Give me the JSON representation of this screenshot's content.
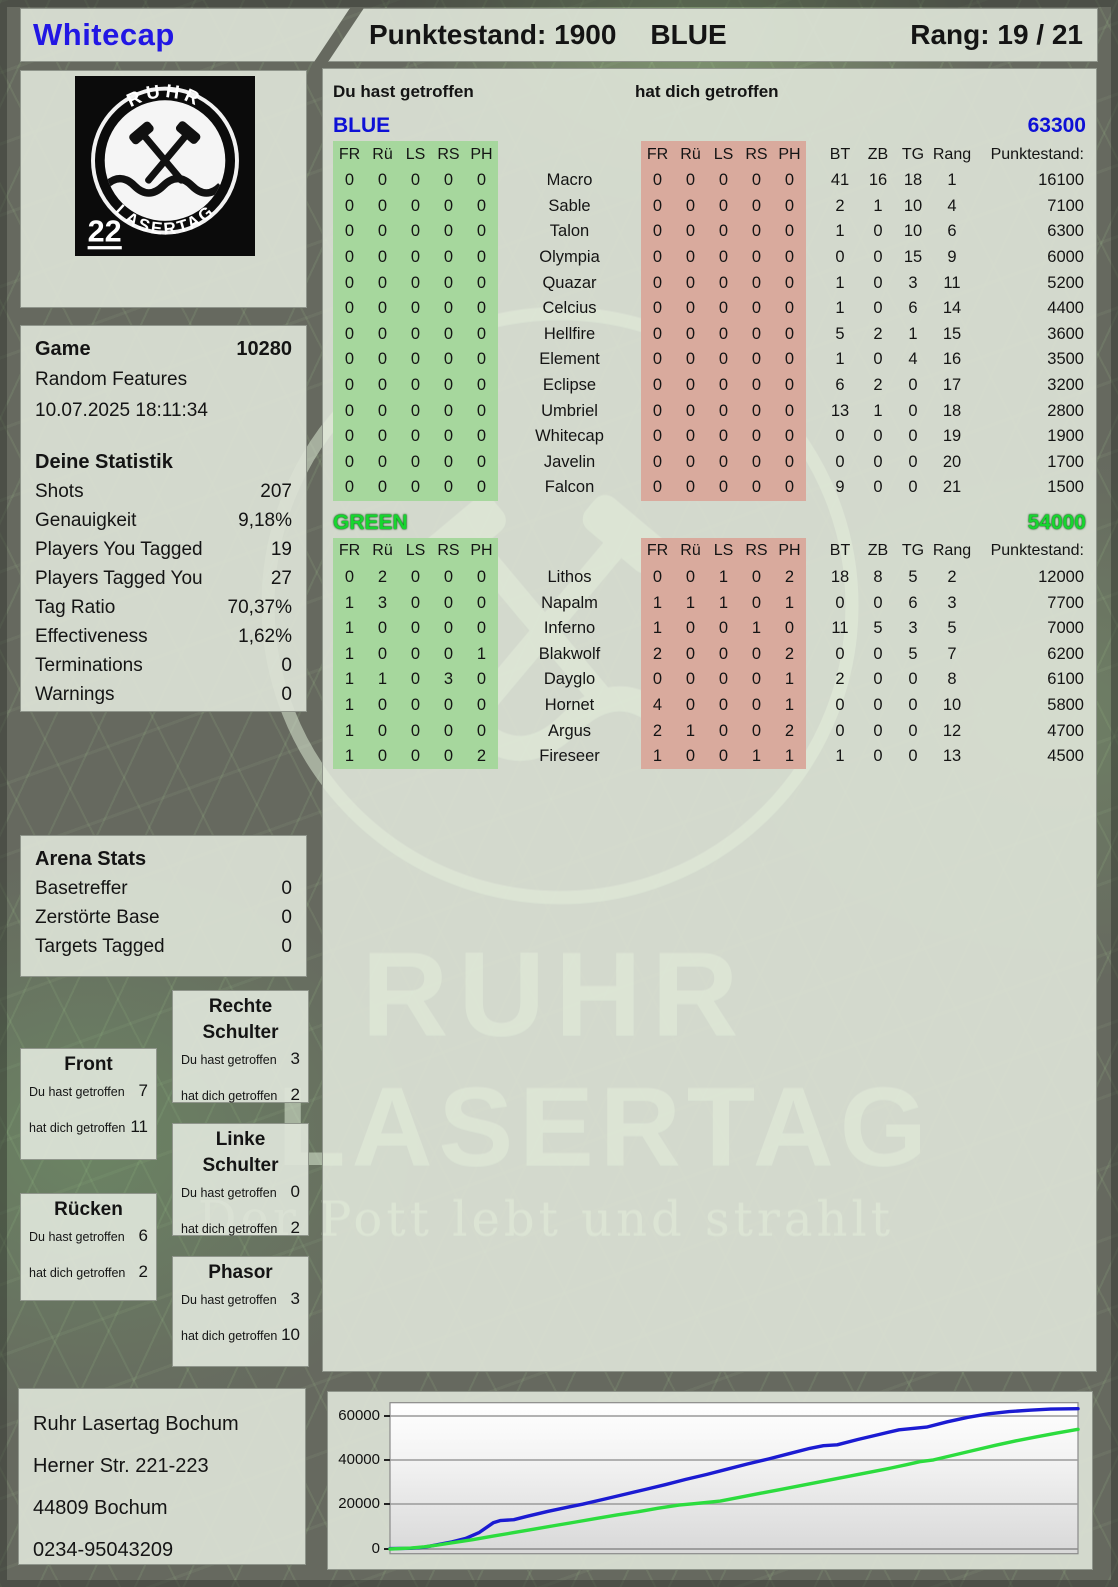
{
  "header": {
    "player": "Whitecap",
    "punktestand": "Punktestand: 1900",
    "team": "BLUE",
    "rang": "Rang: 19 / 21"
  },
  "logo": {
    "arc_top": "RUHR",
    "arc_bottom": "LASERTAG",
    "number": "22"
  },
  "game": {
    "label": "Game",
    "id": "10280",
    "mode": "Random Features",
    "datetime": "10.07.2025 18:11:34"
  },
  "your_stats": {
    "title": "Deine Statistik",
    "rows": [
      [
        "Shots",
        "207"
      ],
      [
        "Genauigkeit",
        "9,18%"
      ],
      [
        "Players You Tagged",
        "19"
      ],
      [
        "Players Tagged You",
        "27"
      ],
      [
        "Tag Ratio",
        "70,37%"
      ],
      [
        "Effectiveness",
        "1,62%"
      ],
      [
        "Terminations",
        "0"
      ],
      [
        "Warnings",
        "0"
      ]
    ]
  },
  "arena_stats": {
    "title": "Arena Stats",
    "rows": [
      [
        "Basetreffer",
        "0"
      ],
      [
        "Zerstörte Base",
        "0"
      ],
      [
        "Targets Tagged",
        "0"
      ]
    ]
  },
  "zones": {
    "boxes": [
      {
        "name": "Front",
        "you_label": "Du hast getroffen",
        "you": "7",
        "them_label": "hat dich getroffen",
        "them": "11"
      },
      {
        "name": "Rechte Schulter",
        "you_label": "Du hast getroffen",
        "you": "3",
        "them_label": "hat dich getroffen",
        "them": "2"
      },
      {
        "name": "Linke Schulter",
        "you_label": "Du hast getroffen",
        "you": "0",
        "them_label": "hat dich getroffen",
        "them": "2"
      },
      {
        "name": "Rücken",
        "you_label": "Du hast getroffen",
        "you": "6",
        "them_label": "hat dich getroffen",
        "them": "2"
      },
      {
        "name": "Phasor",
        "you_label": "Du hast getroffen",
        "you": "3",
        "them_label": "hat dich getroffen",
        "them": "10"
      }
    ]
  },
  "hits_panel": {
    "you_header": "Du hast getroffen",
    "them_header": "hat dich getroffen",
    "zone_cols": [
      "FR",
      "Rü",
      "LS",
      "RS",
      "PH"
    ],
    "stat_cols": [
      "BT",
      "ZB",
      "TG",
      "Rang",
      "Punktestand:"
    ]
  },
  "teams": [
    {
      "name": "BLUE",
      "total": "63300",
      "color": "#0e10d6",
      "players": [
        {
          "name": "Macro",
          "you": [
            "0",
            "0",
            "0",
            "0",
            "0"
          ],
          "them": [
            "0",
            "0",
            "0",
            "0",
            "0"
          ],
          "stats": [
            "41",
            "16",
            "18",
            "1",
            "16100"
          ]
        },
        {
          "name": "Sable",
          "you": [
            "0",
            "0",
            "0",
            "0",
            "0"
          ],
          "them": [
            "0",
            "0",
            "0",
            "0",
            "0"
          ],
          "stats": [
            "2",
            "1",
            "10",
            "4",
            "7100"
          ]
        },
        {
          "name": "Talon",
          "you": [
            "0",
            "0",
            "0",
            "0",
            "0"
          ],
          "them": [
            "0",
            "0",
            "0",
            "0",
            "0"
          ],
          "stats": [
            "1",
            "0",
            "10",
            "6",
            "6300"
          ]
        },
        {
          "name": "Olympia",
          "you": [
            "0",
            "0",
            "0",
            "0",
            "0"
          ],
          "them": [
            "0",
            "0",
            "0",
            "0",
            "0"
          ],
          "stats": [
            "0",
            "0",
            "15",
            "9",
            "6000"
          ]
        },
        {
          "name": "Quazar",
          "you": [
            "0",
            "0",
            "0",
            "0",
            "0"
          ],
          "them": [
            "0",
            "0",
            "0",
            "0",
            "0"
          ],
          "stats": [
            "1",
            "0",
            "3",
            "11",
            "5200"
          ]
        },
        {
          "name": "Celcius",
          "you": [
            "0",
            "0",
            "0",
            "0",
            "0"
          ],
          "them": [
            "0",
            "0",
            "0",
            "0",
            "0"
          ],
          "stats": [
            "1",
            "0",
            "6",
            "14",
            "4400"
          ]
        },
        {
          "name": "Hellfire",
          "you": [
            "0",
            "0",
            "0",
            "0",
            "0"
          ],
          "them": [
            "0",
            "0",
            "0",
            "0",
            "0"
          ],
          "stats": [
            "5",
            "2",
            "1",
            "15",
            "3600"
          ]
        },
        {
          "name": "Element",
          "you": [
            "0",
            "0",
            "0",
            "0",
            "0"
          ],
          "them": [
            "0",
            "0",
            "0",
            "0",
            "0"
          ],
          "stats": [
            "1",
            "0",
            "4",
            "16",
            "3500"
          ]
        },
        {
          "name": "Eclipse",
          "you": [
            "0",
            "0",
            "0",
            "0",
            "0"
          ],
          "them": [
            "0",
            "0",
            "0",
            "0",
            "0"
          ],
          "stats": [
            "6",
            "2",
            "0",
            "17",
            "3200"
          ]
        },
        {
          "name": "Umbriel",
          "you": [
            "0",
            "0",
            "0",
            "0",
            "0"
          ],
          "them": [
            "0",
            "0",
            "0",
            "0",
            "0"
          ],
          "stats": [
            "13",
            "1",
            "0",
            "18",
            "2800"
          ]
        },
        {
          "name": "Whitecap",
          "you": [
            "0",
            "0",
            "0",
            "0",
            "0"
          ],
          "them": [
            "0",
            "0",
            "0",
            "0",
            "0"
          ],
          "stats": [
            "0",
            "0",
            "0",
            "19",
            "1900"
          ]
        },
        {
          "name": "Javelin",
          "you": [
            "0",
            "0",
            "0",
            "0",
            "0"
          ],
          "them": [
            "0",
            "0",
            "0",
            "0",
            "0"
          ],
          "stats": [
            "0",
            "0",
            "0",
            "20",
            "1700"
          ]
        },
        {
          "name": "Falcon",
          "you": [
            "0",
            "0",
            "0",
            "0",
            "0"
          ],
          "them": [
            "0",
            "0",
            "0",
            "0",
            "0"
          ],
          "stats": [
            "9",
            "0",
            "0",
            "21",
            "1500"
          ]
        }
      ]
    },
    {
      "name": "GREEN",
      "total": "54000",
      "color": "#17d52f",
      "players": [
        {
          "name": "Lithos",
          "you": [
            "0",
            "2",
            "0",
            "0",
            "0"
          ],
          "them": [
            "0",
            "0",
            "1",
            "0",
            "2"
          ],
          "stats": [
            "18",
            "8",
            "5",
            "2",
            "12000"
          ]
        },
        {
          "name": "Napalm",
          "you": [
            "1",
            "3",
            "0",
            "0",
            "0"
          ],
          "them": [
            "1",
            "1",
            "1",
            "0",
            "1"
          ],
          "stats": [
            "0",
            "0",
            "6",
            "3",
            "7700"
          ]
        },
        {
          "name": "Inferno",
          "you": [
            "1",
            "0",
            "0",
            "0",
            "0"
          ],
          "them": [
            "1",
            "0",
            "0",
            "1",
            "0"
          ],
          "stats": [
            "11",
            "5",
            "3",
            "5",
            "7000"
          ]
        },
        {
          "name": "Blakwolf",
          "you": [
            "1",
            "0",
            "0",
            "0",
            "1"
          ],
          "them": [
            "2",
            "0",
            "0",
            "0",
            "2"
          ],
          "stats": [
            "0",
            "0",
            "5",
            "7",
            "6200"
          ]
        },
        {
          "name": "Dayglo",
          "you": [
            "1",
            "1",
            "0",
            "3",
            "0"
          ],
          "them": [
            "0",
            "0",
            "0",
            "0",
            "1"
          ],
          "stats": [
            "2",
            "0",
            "0",
            "8",
            "6100"
          ]
        },
        {
          "name": "Hornet",
          "you": [
            "1",
            "0",
            "0",
            "0",
            "0"
          ],
          "them": [
            "4",
            "0",
            "0",
            "0",
            "1"
          ],
          "stats": [
            "0",
            "0",
            "0",
            "10",
            "5800"
          ]
        },
        {
          "name": "Argus",
          "you": [
            "1",
            "0",
            "0",
            "0",
            "0"
          ],
          "them": [
            "2",
            "1",
            "0",
            "0",
            "2"
          ],
          "stats": [
            "0",
            "0",
            "0",
            "12",
            "4700"
          ]
        },
        {
          "name": "Fireseer",
          "you": [
            "1",
            "0",
            "0",
            "0",
            "2"
          ],
          "them": [
            "1",
            "0",
            "0",
            "1",
            "1"
          ],
          "stats": [
            "1",
            "0",
            "0",
            "13",
            "4500"
          ]
        }
      ]
    }
  ],
  "watermark": {
    "ruhr": "RUHR",
    "lasertag": "LASERTAG",
    "slogan": "Der Pott lebt und strahlt"
  },
  "footer": {
    "lines": [
      "Ruhr Lasertag Bochum",
      "Herner Str. 221-223",
      "44809 Bochum",
      "0234-95043209"
    ]
  },
  "chart_data": {
    "type": "line",
    "title": "",
    "xlabel": "",
    "ylabel": "",
    "ylim": [
      0,
      66000
    ],
    "yticks": [
      0,
      20000,
      40000,
      60000
    ],
    "grid": true,
    "legend": false,
    "series": [
      {
        "name": "BLUE",
        "color": "#1b1bd2",
        "final": 63300,
        "points": [
          [
            0,
            200
          ],
          [
            3,
            300
          ],
          [
            5,
            800
          ],
          [
            7,
            2000
          ],
          [
            9,
            3200
          ],
          [
            11,
            4800
          ],
          [
            13,
            7500
          ],
          [
            15,
            11800
          ],
          [
            16,
            12800
          ],
          [
            18,
            13200
          ],
          [
            20,
            14800
          ],
          [
            23,
            17000
          ],
          [
            26,
            19000
          ],
          [
            28,
            20200
          ],
          [
            31,
            22400
          ],
          [
            34,
            24600
          ],
          [
            37,
            26800
          ],
          [
            40,
            29000
          ],
          [
            43,
            31400
          ],
          [
            46,
            33600
          ],
          [
            49,
            36000
          ],
          [
            52,
            38400
          ],
          [
            55,
            40600
          ],
          [
            58,
            43000
          ],
          [
            61,
            45400
          ],
          [
            63,
            46600
          ],
          [
            65,
            47000
          ],
          [
            68,
            49400
          ],
          [
            71,
            51600
          ],
          [
            74,
            53800
          ],
          [
            76,
            54400
          ],
          [
            78,
            55000
          ],
          [
            81,
            57400
          ],
          [
            84,
            59400
          ],
          [
            87,
            61000
          ],
          [
            90,
            62000
          ],
          [
            93,
            62600
          ],
          [
            96,
            63100
          ],
          [
            100,
            63300
          ]
        ]
      },
      {
        "name": "GREEN",
        "color": "#2cdc3e",
        "final": 54000,
        "points": [
          [
            0,
            0
          ],
          [
            3,
            400
          ],
          [
            5,
            1000
          ],
          [
            7,
            1800
          ],
          [
            9,
            2800
          ],
          [
            12,
            4200
          ],
          [
            15,
            5800
          ],
          [
            18,
            7400
          ],
          [
            21,
            9000
          ],
          [
            24,
            10600
          ],
          [
            27,
            12200
          ],
          [
            30,
            13800
          ],
          [
            33,
            15400
          ],
          [
            36,
            16800
          ],
          [
            39,
            18400
          ],
          [
            42,
            19800
          ],
          [
            44,
            20400
          ],
          [
            46,
            21000
          ],
          [
            48,
            21600
          ],
          [
            51,
            23400
          ],
          [
            54,
            25200
          ],
          [
            57,
            27000
          ],
          [
            60,
            28800
          ],
          [
            63,
            30600
          ],
          [
            66,
            32400
          ],
          [
            69,
            34200
          ],
          [
            72,
            36000
          ],
          [
            75,
            38000
          ],
          [
            77,
            39400
          ],
          [
            79,
            40200
          ],
          [
            82,
            42400
          ],
          [
            85,
            44600
          ],
          [
            88,
            46800
          ],
          [
            91,
            48800
          ],
          [
            94,
            50600
          ],
          [
            97,
            52400
          ],
          [
            100,
            54000
          ]
        ]
      }
    ]
  }
}
